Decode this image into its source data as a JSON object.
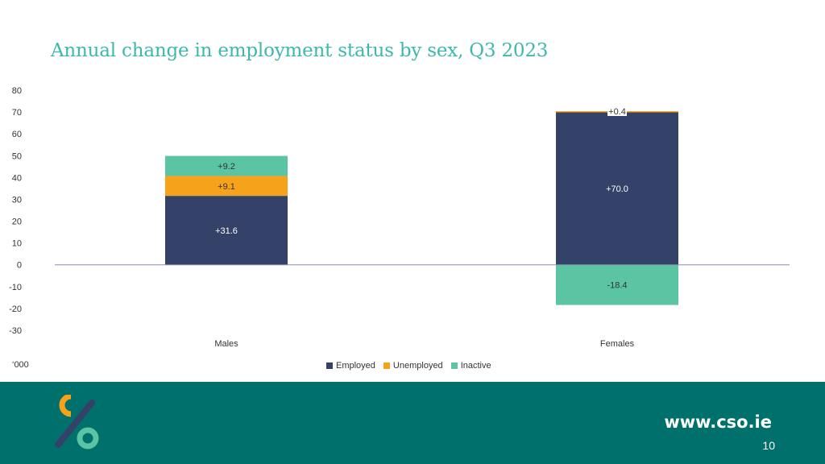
{
  "title": "Annual change in employment status by sex, Q3 2023",
  "units_label": "‘000",
  "chart_data": {
    "type": "bar",
    "stacked": true,
    "title": "Annual change in employment status by sex, Q3 2023",
    "categories": [
      "Males",
      "Females"
    ],
    "series": [
      {
        "name": "Employed",
        "color": "#34426a",
        "values": [
          31.6,
          70.0
        ],
        "labels": [
          "+31.6",
          "+70.0"
        ]
      },
      {
        "name": "Unemployed",
        "color": "#f7a21b",
        "values": [
          9.1,
          0.4
        ],
        "labels": [
          "+9.1",
          "+0.4"
        ]
      },
      {
        "name": "Inactive",
        "color": "#5bc4a3",
        "values": [
          9.2,
          -18.4
        ],
        "labels": [
          "+9.2",
          "-18.4"
        ]
      }
    ],
    "ylim": [
      -30,
      80
    ],
    "yticks": [
      -30,
      -20,
      -10,
      0,
      10,
      20,
      30,
      40,
      50,
      60,
      70,
      80
    ],
    "ylabel": "",
    "xlabel": "",
    "grid": false,
    "legend": "bottom-center"
  },
  "footer": {
    "url": "www.cso.ie",
    "page_number": "10"
  }
}
